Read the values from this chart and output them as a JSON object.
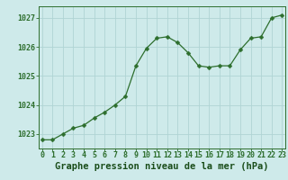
{
  "x": [
    0,
    1,
    2,
    3,
    4,
    5,
    6,
    7,
    8,
    9,
    10,
    11,
    12,
    13,
    14,
    15,
    16,
    17,
    18,
    19,
    20,
    21,
    22,
    23
  ],
  "y": [
    1022.8,
    1022.8,
    1023.0,
    1023.2,
    1023.3,
    1023.55,
    1023.75,
    1024.0,
    1024.3,
    1025.35,
    1025.95,
    1026.3,
    1026.35,
    1026.15,
    1025.8,
    1025.35,
    1025.3,
    1025.35,
    1025.35,
    1025.9,
    1026.3,
    1026.35,
    1027.0,
    1027.1
  ],
  "line_color": "#2d6e2d",
  "marker": "D",
  "marker_size": 2.5,
  "bg_color": "#ceeaea",
  "grid_color": "#b0d4d4",
  "ylabel_ticks": [
    1023,
    1024,
    1025,
    1026,
    1027
  ],
  "xlabel_ticks": [
    0,
    1,
    2,
    3,
    4,
    5,
    6,
    7,
    8,
    9,
    10,
    11,
    12,
    13,
    14,
    15,
    16,
    17,
    18,
    19,
    20,
    21,
    22,
    23
  ],
  "ylim": [
    1022.5,
    1027.4
  ],
  "xlim": [
    -0.3,
    23.3
  ],
  "xlabel": "Graphe pression niveau de la mer (hPa)",
  "title_color": "#1a4d1a",
  "axis_color": "#2d6e2d",
  "tick_color": "#2d6e2d",
  "label_fontsize": 6.0,
  "xlabel_fontsize": 7.5
}
